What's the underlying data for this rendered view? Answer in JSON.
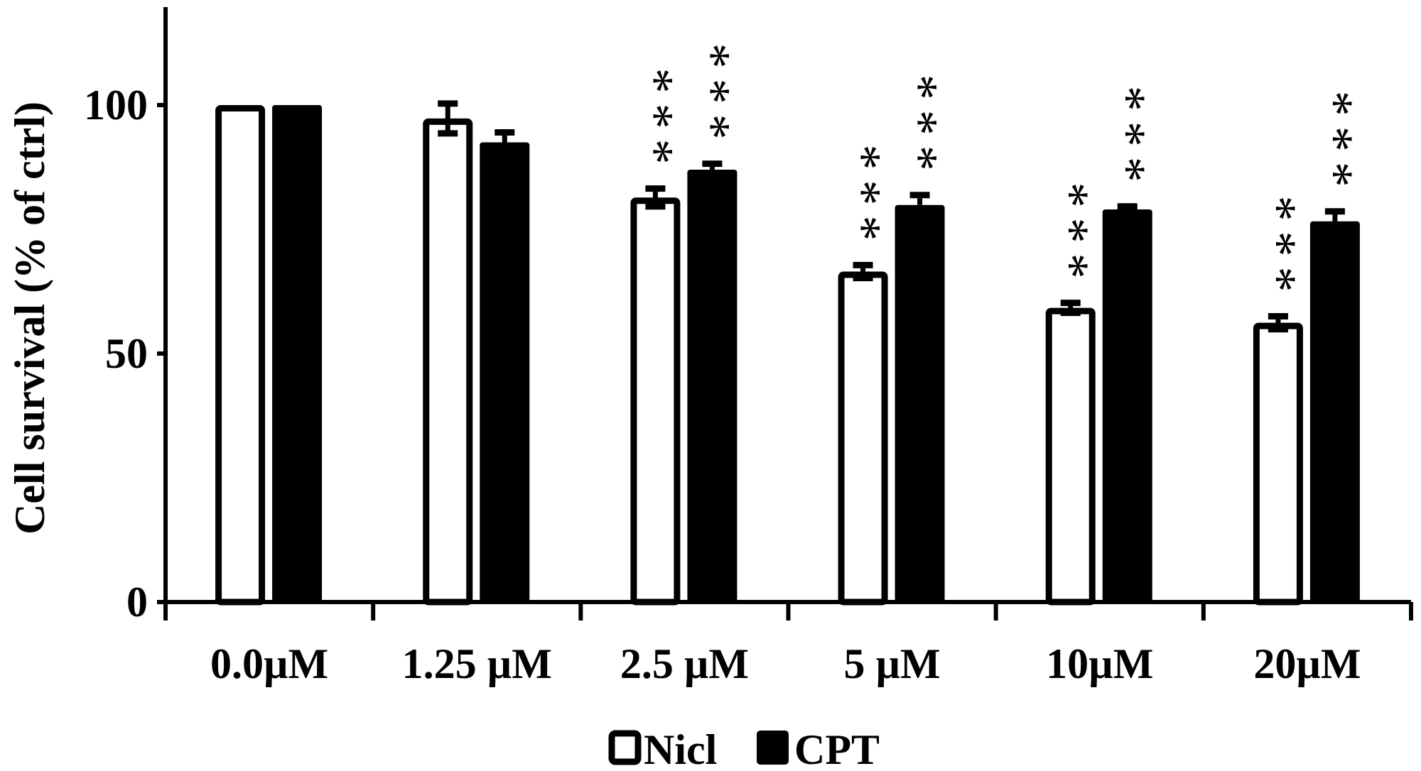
{
  "chart_data": {
    "type": "bar",
    "title": "",
    "xlabel": "",
    "ylabel": "Cell survival (% of ctrl)",
    "categories": [
      "0.0µM",
      "1.25 µM",
      "2.5 µM",
      "5 µM",
      "10µM",
      "20µM"
    ],
    "ylim": [
      0,
      120
    ],
    "yticks": [
      0,
      50,
      100
    ],
    "grid": false,
    "legend_position": "bottom",
    "series": [
      {
        "name": "Nicl",
        "fill": "#ffffff",
        "stroke": "#000000",
        "values": [
          100,
          97.3,
          81.4,
          66.5,
          59.2,
          56.2
        ],
        "errors": [
          0,
          3,
          1.8,
          1.3,
          1.0,
          1.3
        ],
        "significance": [
          "",
          "",
          "***",
          "***",
          "***",
          "***"
        ]
      },
      {
        "name": "CPT",
        "fill": "#000000",
        "stroke": "#000000",
        "values": [
          100,
          92.5,
          87.0,
          79.9,
          79.0,
          76.6
        ],
        "errors": [
          0,
          2,
          1.2,
          2,
          0.6,
          2
        ],
        "significance": [
          "",
          "",
          "***",
          "***",
          "***",
          "***"
        ]
      }
    ]
  }
}
